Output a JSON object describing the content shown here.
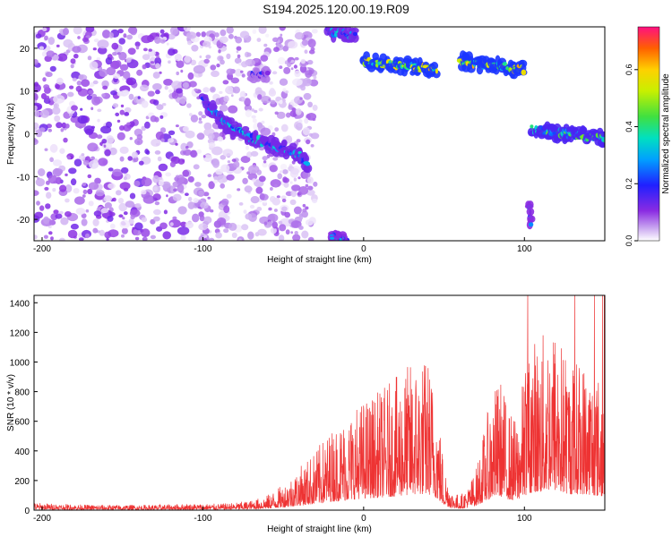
{
  "title": "S194.2025.120.00.19.R09",
  "chart_data": [
    {
      "type": "heatmap",
      "xlabel": "Height of straight line (km)",
      "ylabel": "Frequency (Hz)",
      "xlim": [
        -205,
        150
      ],
      "ylim": [
        -25,
        25
      ],
      "xticks": [
        -200,
        -100,
        0,
        100
      ],
      "xtick_labels": [
        "-200",
        "-100",
        "0",
        "100"
      ],
      "yticks": [
        -20,
        -10,
        0,
        10,
        20
      ],
      "ytick_labels": [
        "-20",
        "-10",
        "0",
        "10",
        "20"
      ],
      "colorbar": {
        "label": "Normalized spectral amplitude",
        "range": [
          0.0,
          0.75
        ],
        "ticks": [
          0.0,
          0.2,
          0.4,
          0.6
        ],
        "tick_labels": [
          "0.0",
          "0.2",
          "0.4",
          "0.6"
        ],
        "colormap": "rainbow"
      },
      "features": [
        {
          "kind": "noise",
          "x": [
            -205,
            -30
          ],
          "y": [
            -25,
            25
          ],
          "amplitude": 0.08
        },
        {
          "kind": "track",
          "points": [
            [
              -100,
              8
            ],
            [
              -85,
              2
            ],
            [
              -70,
              -1
            ],
            [
              -55,
              -3
            ],
            [
              -40,
              -5
            ],
            [
              -35,
              -7
            ]
          ],
          "amplitude": 0.35
        },
        {
          "kind": "track",
          "points": [
            [
              -70,
              14
            ],
            [
              -60,
              14
            ]
          ],
          "amplitude": 0.2
        },
        {
          "kind": "track",
          "points": [
            [
              -22,
              24
            ],
            [
              -5,
              23
            ]
          ],
          "amplitude": 0.35
        },
        {
          "kind": "track",
          "points": [
            [
              -10,
              -25
            ],
            [
              -20,
              -24
            ]
          ],
          "amplitude": 0.3
        },
        {
          "kind": "track",
          "points": [
            [
              0,
              17
            ],
            [
              20,
              16
            ],
            [
              45,
              15
            ]
          ],
          "amplitude": 0.6
        },
        {
          "kind": "track",
          "points": [
            [
              60,
              17
            ],
            [
              80,
              16
            ],
            [
              100,
              15
            ]
          ],
          "amplitude": 0.6
        },
        {
          "kind": "track",
          "points": [
            [
              105,
              1
            ],
            [
              125,
              0
            ],
            [
              150,
              -1
            ]
          ],
          "amplitude": 0.45
        },
        {
          "kind": "track",
          "points": [
            [
              103,
              -17
            ],
            [
              104,
              -21
            ]
          ],
          "amplitude": 0.3
        }
      ]
    },
    {
      "type": "line",
      "xlabel": "Height of straight line (km)",
      "ylabel": "SNR (10 * v/v)",
      "xlim": [
        -205,
        150
      ],
      "ylim": [
        0,
        1450
      ],
      "xticks": [
        -200,
        -100,
        0,
        100
      ],
      "xtick_labels": [
        "-200",
        "-100",
        "0",
        "100"
      ],
      "yticks": [
        0,
        200,
        400,
        600,
        800,
        1000,
        1200,
        1400
      ],
      "ytick_labels": [
        "0",
        "200",
        "400",
        "600",
        "800",
        "1000",
        "1200",
        "1400"
      ],
      "series": [
        {
          "color": "#ee3333",
          "x": [
            -205,
            -190,
            -170,
            -150,
            -130,
            -110,
            -90,
            -80,
            -70,
            -60,
            -50,
            -40,
            -30,
            -20,
            -10,
            0,
            10,
            20,
            30,
            40,
            45,
            50,
            55,
            60,
            65,
            70,
            75,
            80,
            85,
            90,
            95,
            100,
            105,
            110,
            115,
            120,
            125,
            130,
            135,
            140,
            145,
            150
          ],
          "y": [
            35,
            30,
            25,
            25,
            25,
            30,
            30,
            35,
            45,
            70,
            120,
            200,
            280,
            380,
            450,
            520,
            560,
            620,
            700,
            720,
            560,
            220,
            90,
            70,
            110,
            200,
            380,
            560,
            620,
            480,
            420,
            650,
            820,
            800,
            900,
            880,
            760,
            700,
            720,
            700,
            650,
            600
          ]
        }
      ]
    }
  ]
}
